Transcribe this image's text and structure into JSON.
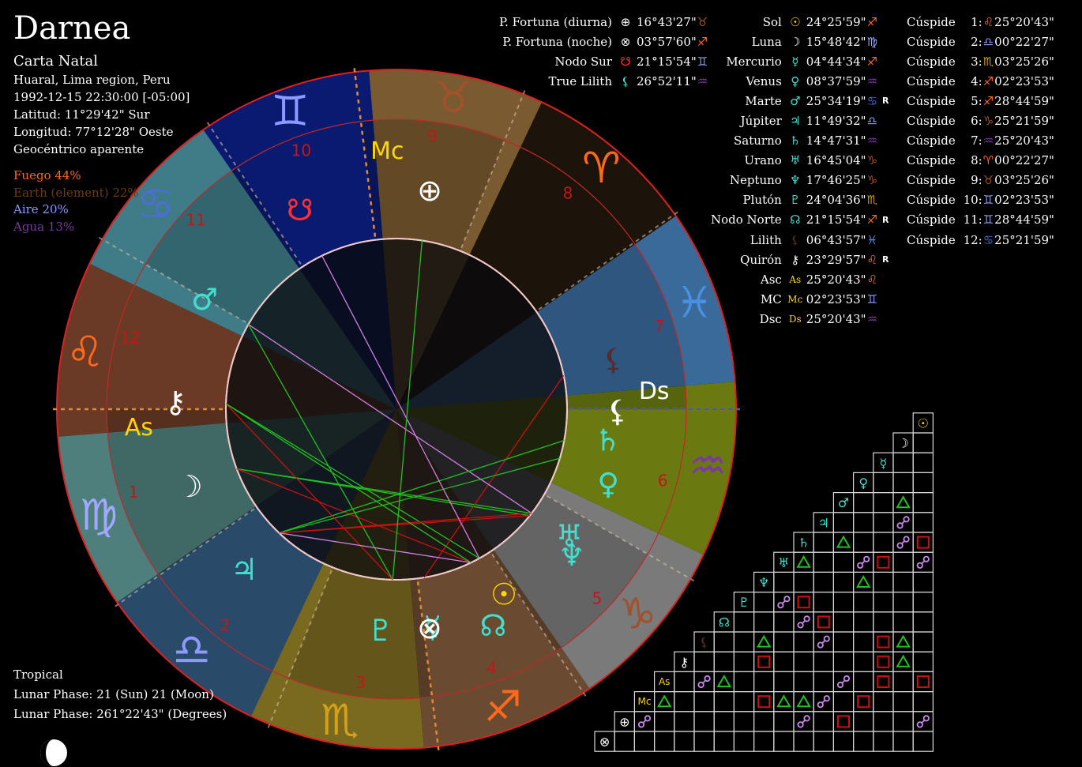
{
  "header": {
    "name": "Darnea",
    "chart_type": "Carta Natal",
    "location": "Huaral, Lima region, Peru",
    "datetime": "1992-12-15 22:30:00 [-05:00]",
    "latitude": "Latitud: 11°29'42\" Sur",
    "longitude": "Longitud: 77°12'28\" Oeste",
    "mode": "Geocéntrico aparente"
  },
  "elements": [
    {
      "text": "Fuego 44%",
      "color": "#ff6a1a"
    },
    {
      "text": "Earth (element) 22%",
      "color": "#6b3d14"
    },
    {
      "text": "Aire 20%",
      "color": "#8c9aff"
    },
    {
      "text": "Agua 13%",
      "color": "#7a39a3"
    }
  ],
  "footer": {
    "zodiac": "Tropical",
    "lunar_phase_1": "Lunar Phase: 21 (Sun) 21 (Moon)",
    "lunar_phase_2": "Lunar Phase: 261°22'43\" (Degrees)"
  },
  "points_left": [
    {
      "label": "P. Fortuna (diurna)",
      "glyph": "⊕",
      "glyph_color": "#ffffff",
      "value": "16°43'27\"",
      "sign": "♉",
      "sign_color": "#a0522d"
    },
    {
      "label": "P. Fortuna (noche)",
      "glyph": "⊗",
      "glyph_color": "#ffffff",
      "value": "03°57'60\"",
      "sign": "♐",
      "sign_color": "#ff6a1a"
    },
    {
      "label": "Nodo Sur",
      "glyph": "☋",
      "glyph_color": "#ff3030",
      "value": "21°15'54\"",
      "sign": "♊",
      "sign_color": "#8c9aff"
    },
    {
      "label": "True Lilith",
      "glyph": "⚸",
      "glyph_color": "#40e0d0",
      "value": "26°52'11\"",
      "sign": "♒",
      "sign_color": "#7a39a3"
    }
  ],
  "planets": [
    {
      "label": "Sol",
      "glyph": "☉",
      "glyph_color": "#ffd700",
      "value": "24°25'59\"",
      "sign": "♐",
      "sign_color": "#ff6a1a",
      "rx": ""
    },
    {
      "label": "Luna",
      "glyph": "☽",
      "glyph_color": "#ffffff",
      "value": "15°48'42\"",
      "sign": "♍",
      "sign_color": "#a0a8ff",
      "rx": ""
    },
    {
      "label": "Mercurio",
      "glyph": "☿",
      "glyph_color": "#40e0d0",
      "value": "04°44'34\"",
      "sign": "♐",
      "sign_color": "#ff6a1a",
      "rx": ""
    },
    {
      "label": "Venus",
      "glyph": "♀",
      "glyph_color": "#40e0d0",
      "value": "08°37'59\"",
      "sign": "♒",
      "sign_color": "#7a39a3",
      "rx": ""
    },
    {
      "label": "Marte",
      "glyph": "♂",
      "glyph_color": "#40e0d0",
      "value": "25°34'19\"",
      "sign": "♋",
      "sign_color": "#4a6fd0",
      "rx": "R"
    },
    {
      "label": "Júpiter",
      "glyph": "♃",
      "glyph_color": "#40e0d0",
      "value": "11°49'32\"",
      "sign": "♎",
      "sign_color": "#8c9aff",
      "rx": ""
    },
    {
      "label": "Saturno",
      "glyph": "♄",
      "glyph_color": "#40e0d0",
      "value": "14°47'31\"",
      "sign": "♒",
      "sign_color": "#7a39a3",
      "rx": ""
    },
    {
      "label": "Urano",
      "glyph": "♅",
      "glyph_color": "#40e0d0",
      "value": "16°45'04\"",
      "sign": "♑",
      "sign_color": "#a0522d",
      "rx": ""
    },
    {
      "label": "Neptuno",
      "glyph": "♆",
      "glyph_color": "#40e0d0",
      "value": "17°46'25\"",
      "sign": "♑",
      "sign_color": "#a0522d",
      "rx": ""
    },
    {
      "label": "Plutón",
      "glyph": "♇",
      "glyph_color": "#40e0d0",
      "value": "24°04'36\"",
      "sign": "♏",
      "sign_color": "#d4a017",
      "rx": ""
    },
    {
      "label": "Nodo Norte",
      "glyph": "☊",
      "glyph_color": "#40e0d0",
      "value": "21°15'54\"",
      "sign": "♐",
      "sign_color": "#ff6a1a",
      "rx": "R"
    },
    {
      "label": "Lilith",
      "glyph": "⚸",
      "glyph_color": "#5a2a2a",
      "value": "06°43'57\"",
      "sign": "♓",
      "sign_color": "#4a90e2",
      "rx": ""
    },
    {
      "label": "Quirón",
      "glyph": "⚷",
      "glyph_color": "#ffffff",
      "value": "23°29'57\"",
      "sign": "♌",
      "sign_color": "#ff6a1a",
      "rx": "R"
    },
    {
      "label": "Asc",
      "glyph": "As",
      "glyph_color": "#ffd700",
      "value": "25°20'43\"",
      "sign": "♌",
      "sign_color": "#ff6a1a",
      "rx": ""
    },
    {
      "label": "MC",
      "glyph": "Mc",
      "glyph_color": "#ffd700",
      "value": "02°23'53\"",
      "sign": "♊",
      "sign_color": "#8c9aff",
      "rx": ""
    },
    {
      "label": "Dsc",
      "glyph": "Ds",
      "glyph_color": "#ffd700",
      "value": "25°20'43\"",
      "sign": "♒",
      "sign_color": "#7a39a3",
      "rx": ""
    }
  ],
  "cusps": [
    {
      "label": "Cúspide",
      "num": "1:",
      "sign": "♌",
      "sign_color": "#ff6a1a",
      "value": "25°20'43\""
    },
    {
      "label": "Cúspide",
      "num": "2:",
      "sign": "♎",
      "sign_color": "#8c9aff",
      "value": "00°22'27\""
    },
    {
      "label": "Cúspide",
      "num": "3:",
      "sign": "♏",
      "sign_color": "#d4a017",
      "value": "03°25'26\""
    },
    {
      "label": "Cúspide",
      "num": "4:",
      "sign": "♐",
      "sign_color": "#ff6a1a",
      "value": "02°23'53\""
    },
    {
      "label": "Cúspide",
      "num": "5:",
      "sign": "♐",
      "sign_color": "#ff6a1a",
      "value": "28°44'59\""
    },
    {
      "label": "Cúspide",
      "num": "6:",
      "sign": "♑",
      "sign_color": "#a0522d",
      "value": "25°21'59\""
    },
    {
      "label": "Cúspide",
      "num": "7:",
      "sign": "♒",
      "sign_color": "#7a39a3",
      "value": "25°20'43\""
    },
    {
      "label": "Cúspide",
      "num": "8:",
      "sign": "♈",
      "sign_color": "#ff6a1a",
      "value": "00°22'27\""
    },
    {
      "label": "Cúspide",
      "num": "9:",
      "sign": "♉",
      "sign_color": "#a0522d",
      "value": "03°25'26\""
    },
    {
      "label": "Cúspide",
      "num": "10:",
      "sign": "♊",
      "sign_color": "#8c9aff",
      "value": "02°23'53\""
    },
    {
      "label": "Cúspide",
      "num": "11:",
      "sign": "♊",
      "sign_color": "#8c9aff",
      "value": "28°44'59\""
    },
    {
      "label": "Cúspide",
      "num": "12:",
      "sign": "♋",
      "sign_color": "#4a6fd0",
      "value": "25°21'59\""
    }
  ],
  "wheel": {
    "ascendant_longitude": 145.35,
    "house_cusps": [
      145.35,
      180.37,
      213.42,
      242.4,
      268.75,
      295.37,
      325.35,
      0.37,
      33.42,
      62.4,
      88.75,
      115.37
    ],
    "house_numbers": [
      "1",
      "2",
      "3",
      "4",
      "5",
      "6",
      "7",
      "8",
      "9",
      "10",
      "11",
      "12"
    ],
    "angle_labels": {
      "asc": "As",
      "dsc": "Ds",
      "mc": "Mc"
    },
    "signs": [
      {
        "glyph": "♈",
        "color": "#ff6a1a",
        "fill": "#1c140a"
      },
      {
        "glyph": "♉",
        "color": "#a0522d",
        "fill": "#7a5a30"
      },
      {
        "glyph": "♊",
        "color": "#8c9aff",
        "fill": "#0a1a70"
      },
      {
        "glyph": "♋",
        "color": "#4a6fd0",
        "fill": "#3f7c88"
      },
      {
        "glyph": "♌",
        "color": "#ff6a1a",
        "fill": "#6a3a26"
      },
      {
        "glyph": "♍",
        "color": "#a0a8ff",
        "fill": "#4f7f7c"
      },
      {
        "glyph": "♎",
        "color": "#8c9aff",
        "fill": "#2a4a6a"
      },
      {
        "glyph": "♏",
        "color": "#d4a017",
        "fill": "#7a6a20"
      },
      {
        "glyph": "♐",
        "color": "#ff6a1a",
        "fill": "#6a4a30"
      },
      {
        "glyph": "♑",
        "color": "#a0522d",
        "fill": "#7a7a7a"
      },
      {
        "glyph": "♒",
        "color": "#7a39a3",
        "fill": "#6a7a10"
      },
      {
        "glyph": "♓",
        "color": "#4a90e2",
        "fill": "#3a6a9a"
      }
    ],
    "bodies": [
      {
        "glyph": "☉",
        "color": "#ffd700",
        "lon": 264.43
      },
      {
        "glyph": "☽",
        "color": "#ffffff",
        "lon": 165.81
      },
      {
        "glyph": "☿",
        "color": "#40e0d0",
        "lon": 244.74
      },
      {
        "glyph": "♀",
        "color": "#40e0d0",
        "lon": 308.63
      },
      {
        "glyph": "♂",
        "color": "#40e0d0",
        "lon": 115.57
      },
      {
        "glyph": "♃",
        "color": "#40e0d0",
        "lon": 191.83
      },
      {
        "glyph": "♄",
        "color": "#40e0d0",
        "lon": 314.79
      },
      {
        "glyph": "♅",
        "color": "#40e0d0",
        "lon": 286.75
      },
      {
        "glyph": "♆",
        "color": "#40e0d0",
        "lon": 287.77
      },
      {
        "glyph": "♇",
        "color": "#40e0d0",
        "lon": 234.08
      },
      {
        "glyph": "☊",
        "color": "#40e0d0",
        "lon": 261.27
      },
      {
        "glyph": "⚸",
        "color": "#5a2a2a",
        "lon": 336.73
      },
      {
        "glyph": "⚷",
        "color": "#ffffff",
        "lon": 143.5
      },
      {
        "glyph": "⊕",
        "color": "#ffffff",
        "lon": 46.72
      },
      {
        "glyph": "⊗",
        "color": "#ffffff",
        "lon": 243.97
      },
      {
        "glyph": "☋",
        "color": "#ff3030",
        "lon": 81.27
      },
      {
        "glyph": "⚸",
        "color": "#ffffff",
        "lon": 326.87
      }
    ],
    "aspect_colors": {
      "trine": "#22c022",
      "square": "#cc1010",
      "opposition": "#d080e0"
    }
  },
  "aspect_grid": {
    "row_glyphs": [
      {
        "glyph": "☉",
        "color": "#ffd700"
      },
      {
        "glyph": "☽",
        "color": "#ffffff"
      },
      {
        "glyph": "☿",
        "color": "#40e0d0"
      },
      {
        "glyph": "♀",
        "color": "#40e0d0"
      },
      {
        "glyph": "♂",
        "color": "#40e0d0"
      },
      {
        "glyph": "♃",
        "color": "#40e0d0"
      },
      {
        "glyph": "♄",
        "color": "#40e0d0"
      },
      {
        "glyph": "♅",
        "color": "#40e0d0"
      },
      {
        "glyph": "♆",
        "color": "#40e0d0"
      },
      {
        "glyph": "♇",
        "color": "#40e0d0"
      },
      {
        "glyph": "☊",
        "color": "#40e0d0"
      },
      {
        "glyph": "⚸",
        "color": "#5a2a2a"
      },
      {
        "glyph": "⚷",
        "color": "#ffffff"
      },
      {
        "glyph": "As",
        "color": "#ffd700"
      },
      {
        "glyph": "Mc",
        "color": "#ffd700"
      },
      {
        "glyph": "⊕",
        "color": "#ffffff"
      },
      {
        "glyph": "⊗",
        "color": "#ffffff"
      }
    ],
    "cells": [
      {
        "r": 4,
        "c": 1,
        "t": "tri"
      },
      {
        "r": 5,
        "c": 1,
        "t": "opp"
      },
      {
        "r": 6,
        "c": 0,
        "t": "sq"
      },
      {
        "r": 6,
        "c": 1,
        "t": "opp"
      },
      {
        "r": 6,
        "c": 4,
        "t": "tri"
      },
      {
        "r": 7,
        "c": 0,
        "t": "opp"
      },
      {
        "r": 7,
        "c": 2,
        "t": "sq"
      },
      {
        "r": 7,
        "c": 3,
        "t": "opp"
      },
      {
        "r": 7,
        "c": 6,
        "t": "tri"
      },
      {
        "r": 8,
        "c": 3,
        "t": "tri"
      },
      {
        "r": 9,
        "c": 6,
        "t": "sq"
      },
      {
        "r": 9,
        "c": 7,
        "t": "opp"
      },
      {
        "r": 10,
        "c": 5,
        "t": "sq"
      },
      {
        "r": 10,
        "c": 6,
        "t": "opp"
      },
      {
        "r": 11,
        "c": 1,
        "t": "tri"
      },
      {
        "r": 11,
        "c": 2,
        "t": "sq"
      },
      {
        "r": 11,
        "c": 5,
        "t": "opp"
      },
      {
        "r": 11,
        "c": 8,
        "t": "tri"
      },
      {
        "r": 12,
        "c": 1,
        "t": "tri"
      },
      {
        "r": 12,
        "c": 2,
        "t": "sq"
      },
      {
        "r": 12,
        "c": 8,
        "t": "sq"
      },
      {
        "r": 13,
        "c": 0,
        "t": "sq"
      },
      {
        "r": 13,
        "c": 2,
        "t": "sq"
      },
      {
        "r": 13,
        "c": 4,
        "t": "opp"
      },
      {
        "r": 13,
        "c": 10,
        "t": "tri"
      },
      {
        "r": 13,
        "c": 11,
        "t": "opp"
      },
      {
        "r": 13,
        "c": 13,
        "t": "sq"
      },
      {
        "r": 14,
        "c": 3,
        "t": "sq"
      },
      {
        "r": 14,
        "c": 5,
        "t": "opp"
      },
      {
        "r": 14,
        "c": 6,
        "t": "tri"
      },
      {
        "r": 14,
        "c": 7,
        "t": "tri"
      },
      {
        "r": 14,
        "c": 8,
        "t": "sq"
      },
      {
        "r": 14,
        "c": 13,
        "t": "tri"
      },
      {
        "r": 15,
        "c": 0,
        "t": "opp"
      },
      {
        "r": 15,
        "c": 4,
        "t": "sq"
      },
      {
        "r": 15,
        "c": 6,
        "t": "opp"
      },
      {
        "r": 15,
        "c": 14,
        "t": "opp"
      }
    ]
  }
}
